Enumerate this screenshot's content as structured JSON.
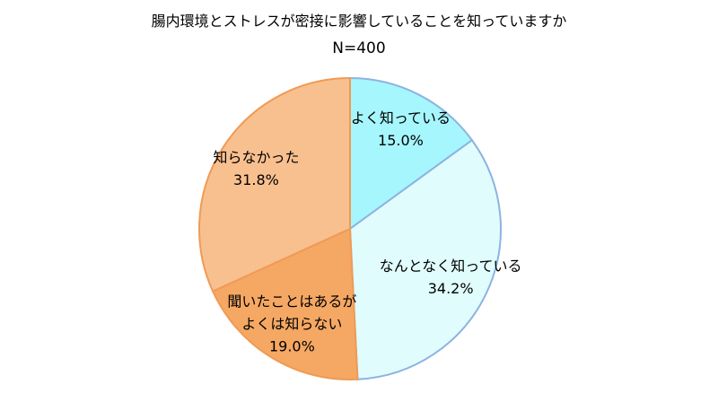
{
  "chart_data": {
    "type": "pie",
    "title": "腸内環境とストレスが密接に影響していることを知っていますか",
    "subtitle": "N=400",
    "categories": [
      "よく知っている",
      "なんとなく知っている",
      "聞いたことはあるが\nよくは知らない",
      "知らなかった"
    ],
    "values": [
      15.0,
      34.2,
      19.0,
      31.8
    ],
    "value_labels": [
      "15.0%",
      "34.2%",
      "19.0%",
      "31.8%"
    ],
    "colors": [
      "#a6f6fd",
      "#e0fcfd",
      "#f5a863",
      "#f8c08f"
    ],
    "edge_colors": [
      "#8db3e2",
      "#8db3e2",
      "#f09a55",
      "#f09a55"
    ]
  }
}
